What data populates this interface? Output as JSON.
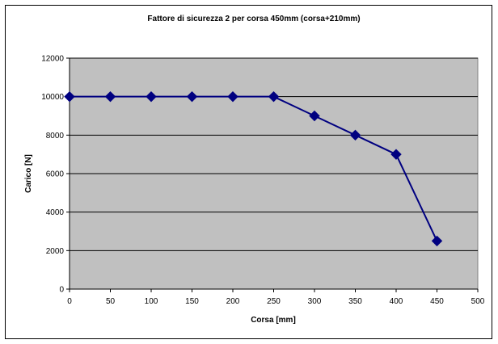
{
  "chart_data": {
    "type": "line",
    "title": "Fattore di sicurezza 2 per corsa 450mm (corsa+210mm)",
    "xlabel": "Corsa [mm]",
    "ylabel": "Carico [N]",
    "x": [
      0,
      50,
      100,
      150,
      200,
      250,
      300,
      350,
      400,
      450
    ],
    "series": [
      {
        "values": [
          10000,
          10000,
          10000,
          10000,
          10000,
          10000,
          9000,
          8000,
          7000,
          2500
        ],
        "color": "#000080",
        "marker": "diamond"
      }
    ],
    "xlim": [
      0,
      500
    ],
    "ylim": [
      0,
      12000
    ],
    "xticks": [
      "0",
      "50",
      "100",
      "150",
      "200",
      "250",
      "300",
      "350",
      "400",
      "450",
      "500"
    ],
    "yticks": [
      "0",
      "2000",
      "4000",
      "6000",
      "8000",
      "10000",
      "12000"
    ],
    "grid": "horizontal",
    "legend": "none",
    "plot_background": "#C0C0C0"
  }
}
